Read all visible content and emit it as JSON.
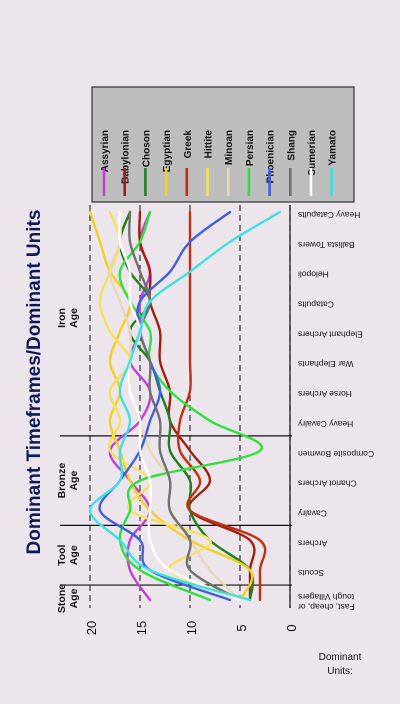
{
  "chart_data": {
    "type": "line",
    "title": "Dominant Timeframes/Dominant Units",
    "ylabel": "Dominant Units:",
    "ylim": [
      0,
      20
    ],
    "yticks": [
      0,
      5,
      10,
      15,
      20
    ],
    "eras": [
      "Stone Age",
      "Tool Age",
      "Bronze Age",
      "Iron Age"
    ],
    "categories": [
      "Fast, cheap, or tough Villagers",
      "Scouts",
      "Archers",
      "Cavalry",
      "Chariot Archers",
      "Composite Bowmen",
      "Heavy Cavalry",
      "Horse Archers",
      "War Elephants",
      "Elephant Archers",
      "Catapults",
      "Helopoli",
      "Ballista Towers",
      "Heavy Catapults"
    ],
    "grid": true,
    "legend_position": "right",
    "series": [
      {
        "name": "Assyrian",
        "color": "#c040d0",
        "values": [
          14,
          16,
          16,
          14,
          16,
          18,
          15,
          14,
          16,
          15,
          15,
          14,
          15,
          14
        ]
      },
      {
        "name": "Babylonian",
        "color": "#a02010",
        "values": [
          4,
          4,
          4,
          10,
          8,
          10,
          12,
          12,
          13,
          13,
          14,
          14,
          15,
          15
        ]
      },
      {
        "name": "Choson",
        "color": "#208020",
        "values": [
          4,
          4,
          8,
          10,
          10,
          12,
          12,
          13,
          14,
          16,
          14,
          16,
          17,
          16
        ]
      },
      {
        "name": "Egyptian",
        "color": "#f0d020",
        "values": [
          5,
          4,
          10,
          14,
          16,
          17,
          18,
          17,
          18,
          17,
          16,
          18,
          19,
          20
        ]
      },
      {
        "name": "Greek",
        "color": "#c03010",
        "values": [
          3,
          3,
          3,
          10,
          9,
          11,
          11,
          10,
          10,
          10,
          10,
          10,
          10,
          10
        ]
      },
      {
        "name": "Hittite",
        "color": "#f5e060",
        "values": [
          4,
          12,
          8,
          16,
          14,
          18,
          17,
          18,
          16,
          18,
          19,
          18,
          17,
          18
        ]
      },
      {
        "name": "Minoan",
        "color": "#e8d8b8",
        "values": [
          5,
          8,
          10,
          12,
          12,
          14,
          15,
          16,
          16,
          16,
          17,
          18,
          17,
          17
        ]
      },
      {
        "name": "Persian",
        "color": "#30e040",
        "values": [
          8,
          15,
          17,
          16,
          15,
          3,
          8,
          12,
          14,
          14,
          16,
          17,
          15,
          14
        ]
      },
      {
        "name": "Phoenician",
        "color": "#4060e0",
        "values": [
          6,
          14,
          15,
          19,
          17,
          15,
          14,
          13,
          14,
          15,
          15,
          12,
          10,
          6
        ]
      },
      {
        "name": "Shang",
        "color": "#707070",
        "values": [
          5,
          10,
          10,
          12,
          12,
          13,
          13,
          14,
          14,
          15,
          14,
          15,
          16,
          16
        ]
      },
      {
        "name": "Sumerian",
        "color": "#ffffff",
        "values": [
          5,
          12,
          14,
          14,
          14,
          15,
          15,
          16,
          16,
          15,
          16,
          16,
          17,
          17
        ]
      },
      {
        "name": "Yamato",
        "color": "#40e0e0",
        "values": [
          4,
          14,
          17,
          20,
          17,
          17,
          16,
          17,
          16,
          15,
          14,
          10,
          6,
          1
        ]
      }
    ]
  }
}
